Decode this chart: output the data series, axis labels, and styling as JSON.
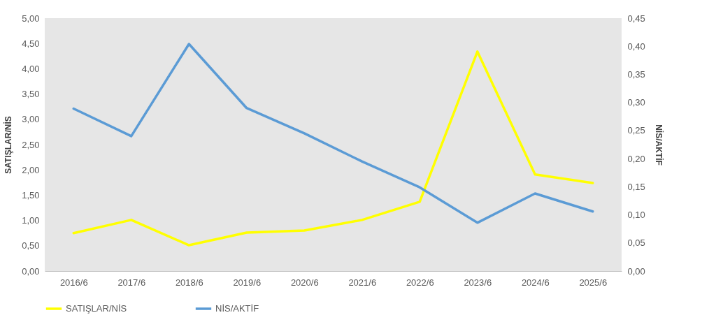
{
  "chart_data": {
    "type": "line",
    "ylabel": "SATIŞLAR/NİS",
    "y2label": "NİS/AKTİF",
    "categories": [
      "2016/6",
      "2017/6",
      "2018/6",
      "2019/6",
      "2020/6",
      "2021/6",
      "2022/6",
      "2023/6",
      "2024/6",
      "2025/6"
    ],
    "series": [
      {
        "name": "SATIŞLAR/NİS",
        "color": "#ffff00",
        "values": [
          0.75,
          1.01,
          0.51,
          0.76,
          0.8,
          1.01,
          1.37,
          4.34,
          1.91,
          1.74
        ]
      },
      {
        "name": "NİS/AKTİF",
        "color": "#5b9bd5",
        "axis": "y2",
        "values": [
          0.289,
          0.24,
          0.404,
          0.29,
          0.245,
          0.195,
          0.149,
          0.086,
          0.138,
          0.106
        ]
      }
    ],
    "ylim": [
      0,
      5
    ],
    "yticks": [
      {
        "value": 0,
        "label": "0,00"
      },
      {
        "value": 0.5,
        "label": "0,50"
      },
      {
        "value": 1,
        "label": "1,00"
      },
      {
        "value": 1.5,
        "label": "1,50"
      },
      {
        "value": 2,
        "label": "2,00"
      },
      {
        "value": 2.5,
        "label": "2,50"
      },
      {
        "value": 3,
        "label": "3,00"
      },
      {
        "value": 3.5,
        "label": "3,50"
      },
      {
        "value": 4,
        "label": "4,00"
      },
      {
        "value": 4.5,
        "label": "4,50"
      },
      {
        "value": 5,
        "label": "5,00"
      }
    ],
    "y2lim": [
      0,
      0.45
    ],
    "y2ticks": [
      {
        "value": 0,
        "label": "0,00"
      },
      {
        "value": 0.05,
        "label": "0,05"
      },
      {
        "value": 0.1,
        "label": "0,10"
      },
      {
        "value": 0.15,
        "label": "0,15"
      },
      {
        "value": 0.2,
        "label": "0,20"
      },
      {
        "value": 0.25,
        "label": "0,25"
      },
      {
        "value": 0.3,
        "label": "0,30"
      },
      {
        "value": 0.35,
        "label": "0,35"
      },
      {
        "value": 0.4,
        "label": "0,40"
      },
      {
        "value": 0.45,
        "label": "0,45"
      }
    ],
    "grid": false,
    "legend": "bottom",
    "marker": "none",
    "line_style": "solid"
  }
}
